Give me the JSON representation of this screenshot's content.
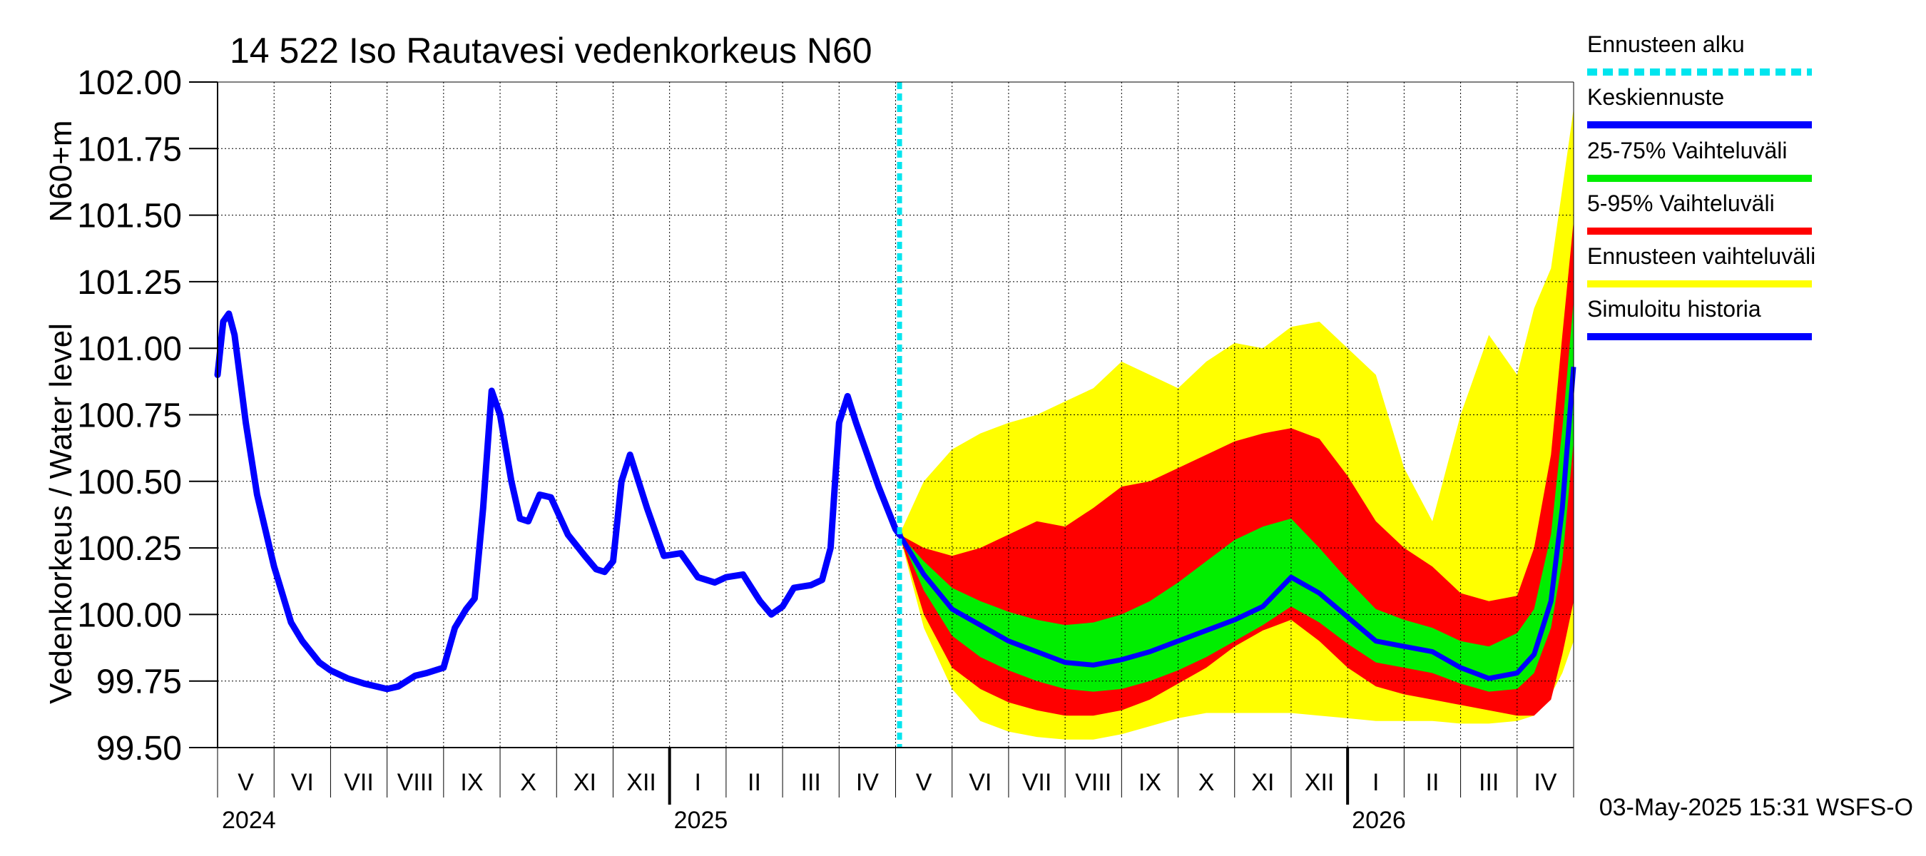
{
  "chart_data": {
    "type": "area",
    "title": "14 522 Iso Rautavesi vedenkorkeus N60",
    "ylabel": "Vedenkorkeus / Water level",
    "ylabel2": "N60+m",
    "ylim": [
      99.5,
      102.0
    ],
    "yticks": [
      "102.00",
      "101.75",
      "101.50",
      "101.25",
      "101.00",
      "100.75",
      "100.50",
      "100.25",
      "100.00",
      "99.75",
      "99.50"
    ],
    "x_unit": "month index from 2024-05-01",
    "xlim": [
      0,
      24
    ],
    "months": [
      "V",
      "VI",
      "VII",
      "VIII",
      "IX",
      "X",
      "XI",
      "XII",
      "I",
      "II",
      "III",
      "IV",
      "V",
      "VI",
      "VII",
      "VIII",
      "IX",
      "X",
      "XI",
      "XII",
      "I",
      "II",
      "III",
      "IV"
    ],
    "years": [
      "2024",
      "2025",
      "2026"
    ],
    "forecast_start": 12.07,
    "grid": true,
    "legend_position": "right",
    "legend": [
      {
        "label": "Ennusteen alku",
        "color": "#00e5ee",
        "style": "dashed"
      },
      {
        "label": "Keskiennuste",
        "color": "#0000ff",
        "style": "solid"
      },
      {
        "label": "25-75% Vaihteluväli",
        "color": "#00ee00",
        "style": "solid"
      },
      {
        "label": "5-95% Vaihteluväli",
        "color": "#ff0000",
        "style": "solid"
      },
      {
        "label": "Ennusteen vaihteluväli",
        "color": "#ffff00",
        "style": "solid"
      },
      {
        "label": "Simuloitu historia",
        "color": "#0000ff",
        "style": "solid"
      }
    ],
    "colors": {
      "history": "#0000ff",
      "median": "#0000ff",
      "band_25_75": "#00ee00",
      "band_5_95": "#ff0000",
      "band_full": "#ffff00",
      "forecast_start": "#00e5ee"
    },
    "history": {
      "x": [
        0,
        0.1,
        0.2,
        0.3,
        0.5,
        0.7,
        1.0,
        1.3,
        1.5,
        1.8,
        2.0,
        2.3,
        2.6,
        3.0,
        3.2,
        3.5,
        3.7,
        4.0,
        4.2,
        4.4,
        4.55,
        4.7,
        4.85,
        5.0,
        5.2,
        5.35,
        5.5,
        5.7,
        5.9,
        6.2,
        6.5,
        6.7,
        6.85,
        7.0,
        7.15,
        7.3,
        7.6,
        7.9,
        8.2,
        8.5,
        8.8,
        9.0,
        9.3,
        9.6,
        9.8,
        10.0,
        10.2,
        10.5,
        10.7,
        10.85,
        11.0,
        11.15,
        11.3,
        11.5,
        11.7,
        12.0,
        12.07
      ],
      "y": [
        100.9,
        101.1,
        101.13,
        101.05,
        100.72,
        100.45,
        100.18,
        99.97,
        99.9,
        99.82,
        99.79,
        99.76,
        99.74,
        99.72,
        99.73,
        99.77,
        99.78,
        99.8,
        99.95,
        100.02,
        100.06,
        100.4,
        100.84,
        100.75,
        100.5,
        100.36,
        100.35,
        100.45,
        100.44,
        100.3,
        100.22,
        100.17,
        100.16,
        100.2,
        100.5,
        100.6,
        100.4,
        100.22,
        100.23,
        100.14,
        100.12,
        100.14,
        100.15,
        100.05,
        100.0,
        100.03,
        100.1,
        100.11,
        100.13,
        100.25,
        100.72,
        100.82,
        100.72,
        100.6,
        100.48,
        100.32,
        100.3
      ]
    },
    "forecast": {
      "x": [
        12.07,
        12.5,
        13,
        13.5,
        14,
        14.5,
        15,
        15.5,
        16,
        16.5,
        17,
        17.5,
        18,
        18.5,
        19,
        19.5,
        20,
        20.5,
        21,
        21.5,
        22,
        22.5,
        23,
        23.3,
        23.6,
        23.8,
        24
      ],
      "median": [
        100.3,
        100.15,
        100.02,
        99.96,
        99.9,
        99.86,
        99.82,
        99.81,
        99.83,
        99.86,
        99.9,
        99.94,
        99.98,
        100.03,
        100.14,
        100.08,
        99.99,
        99.9,
        99.88,
        99.86,
        99.8,
        99.76,
        99.78,
        99.85,
        100.05,
        100.4,
        100.93
      ],
      "p25": [
        100.3,
        100.09,
        99.92,
        99.84,
        99.79,
        99.75,
        99.72,
        99.71,
        99.72,
        99.75,
        99.79,
        99.84,
        99.9,
        99.96,
        100.03,
        99.97,
        99.89,
        99.82,
        99.8,
        99.78,
        99.74,
        99.71,
        99.72,
        99.78,
        99.95,
        100.2,
        100.65
      ],
      "p75": [
        100.3,
        100.2,
        100.1,
        100.05,
        100.01,
        99.98,
        99.96,
        99.97,
        100.0,
        100.05,
        100.12,
        100.2,
        100.28,
        100.33,
        100.36,
        100.25,
        100.13,
        100.02,
        99.98,
        99.95,
        99.9,
        99.88,
        99.93,
        100.02,
        100.3,
        100.7,
        101.18
      ],
      "p5": [
        100.3,
        100.0,
        99.8,
        99.72,
        99.67,
        99.64,
        99.62,
        99.62,
        99.64,
        99.68,
        99.74,
        99.8,
        99.88,
        99.94,
        99.98,
        99.9,
        99.8,
        99.73,
        99.7,
        99.68,
        99.66,
        99.64,
        99.62,
        99.62,
        99.68,
        99.85,
        100.05
      ],
      "p95": [
        100.3,
        100.25,
        100.22,
        100.25,
        100.3,
        100.35,
        100.33,
        100.4,
        100.48,
        100.5,
        100.55,
        100.6,
        100.65,
        100.68,
        100.7,
        100.66,
        100.52,
        100.35,
        100.25,
        100.18,
        100.08,
        100.05,
        100.07,
        100.25,
        100.6,
        101.05,
        101.48
      ],
      "min": [
        100.3,
        99.95,
        99.72,
        99.6,
        99.56,
        99.54,
        99.53,
        99.53,
        99.55,
        99.58,
        99.61,
        99.63,
        99.63,
        99.63,
        99.63,
        99.62,
        99.61,
        99.6,
        99.6,
        99.6,
        99.59,
        99.59,
        99.6,
        99.62,
        99.7,
        99.78,
        99.9
      ],
      "max": [
        100.3,
        100.5,
        100.62,
        100.68,
        100.72,
        100.75,
        100.8,
        100.85,
        100.95,
        100.9,
        100.85,
        100.95,
        101.02,
        101.0,
        101.08,
        101.1,
        101.0,
        100.9,
        100.55,
        100.35,
        100.75,
        101.05,
        100.9,
        101.15,
        101.3,
        101.6,
        101.9
      ]
    }
  },
  "footer_text": "03-May-2025 15:31 WSFS-O"
}
